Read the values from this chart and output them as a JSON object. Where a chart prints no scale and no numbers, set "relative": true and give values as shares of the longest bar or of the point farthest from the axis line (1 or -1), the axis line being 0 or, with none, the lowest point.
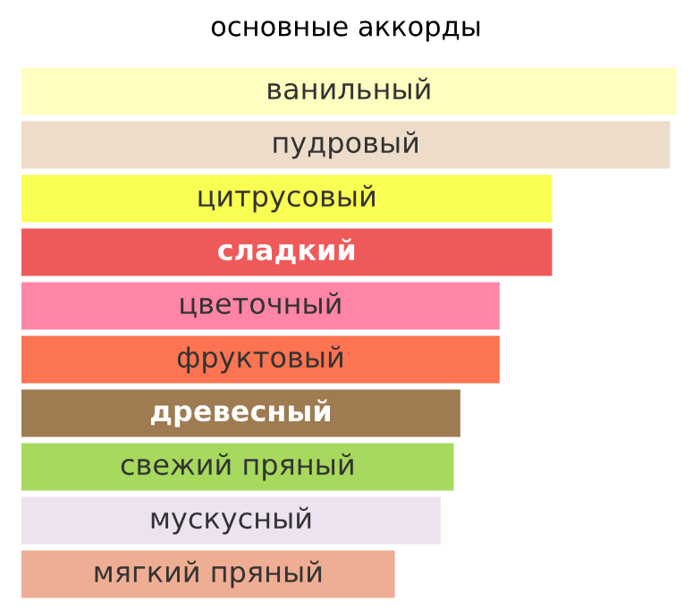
{
  "chart_data": {
    "type": "bar",
    "orientation": "horizontal",
    "relative": true,
    "title": "основные аккорды",
    "categories": [
      "ванильный",
      "пудровый",
      "цитрусовый",
      "сладкий",
      "цветочный",
      "фруктовый",
      "древесный",
      "свежий пряный",
      "мускусный",
      "мягкий пряный"
    ],
    "values": [
      1,
      0.99,
      0.81,
      0.81,
      0.73,
      0.73,
      0.67,
      0.66,
      0.64,
      0.57
    ],
    "colors": [
      "#fffdc0",
      "#eedcca",
      "#f9ff52",
      "#ee5a5a",
      "#ff85a6",
      "#fc7452",
      "#9f7b52",
      "#a6d95d",
      "#ede3f0",
      "#efae93"
    ]
  }
}
